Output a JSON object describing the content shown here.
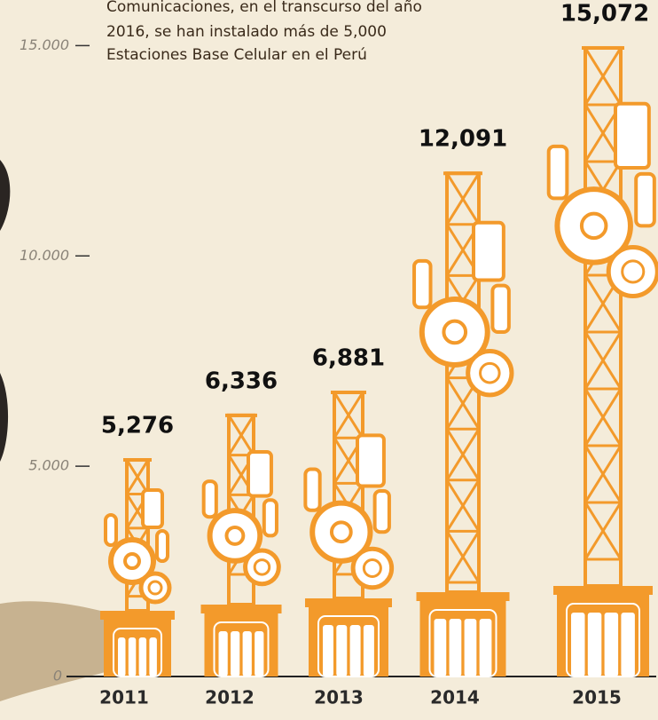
{
  "chart_data": {
    "type": "bar",
    "annotation": [
      "Comunicaciones, en el transcurso del año",
      "2016, se han instalado más de 5,000",
      "Estaciones Base Celular en el Perú"
    ],
    "categories": [
      "2011",
      "2012",
      "2013",
      "2014",
      "2015"
    ],
    "values": [
      5276,
      6336,
      6881,
      12091,
      15072
    ],
    "value_labels": [
      "5,276",
      "6,336",
      "6,881",
      "12,091",
      "15,072"
    ],
    "color": "#f39a2b",
    "ylim": [
      0,
      16000
    ],
    "yticks": [
      0,
      {
        "value": 5000,
        "label": "5.000"
      },
      {
        "value": 10000,
        "label": "10.000"
      },
      {
        "value": 15000,
        "label": "15.000"
      }
    ]
  }
}
